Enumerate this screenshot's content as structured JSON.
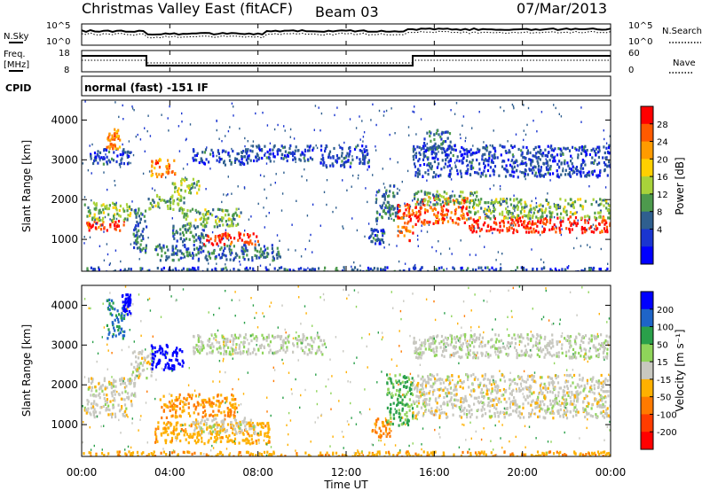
{
  "header": {
    "title": "Christmas Valley East (fitACF)",
    "beam": "Beam 03",
    "date": "07/Mar/2013"
  },
  "ops_panel": {
    "nsky_label": "N.Sky",
    "nsky_ticks": [
      "10^5",
      "10^0"
    ],
    "nsearch_label": "N.Search",
    "nsearch_ticks": [
      "10^5",
      "10^0"
    ],
    "freq_label_1": "Freq.",
    "freq_label_2": "[MHz]",
    "freq_ticks": [
      "18",
      "8"
    ],
    "nave_label": "Nave",
    "nave_ticks": [
      "60",
      "0"
    ],
    "cpid_label": "CPID",
    "cpid_value": "normal (fast) -151 IF"
  },
  "chart_data": [
    {
      "type": "heatmap",
      "name": "power",
      "ylabel": "Slant Range [km]",
      "ylim": [
        200,
        4500
      ],
      "yticks": [
        "1000",
        "2000",
        "3000",
        "4000"
      ],
      "colorbar": {
        "label": "Power [dB]",
        "ticks": [
          "28",
          "24",
          "20",
          "16",
          "12",
          "8",
          "4"
        ],
        "colors": [
          "#ff0000",
          "#ff5a00",
          "#ff9b00",
          "#ffd000",
          "#a8d23a",
          "#4d9a4d",
          "#2f5f8f",
          "#1a35d0",
          "#0000ff"
        ]
      },
      "blobs": [
        {
          "t0": 0.2,
          "t1": 1.9,
          "r0": 1250,
          "r1": 1500,
          "p": 28
        },
        {
          "t0": 0.1,
          "t1": 2.2,
          "r0": 1500,
          "r1": 1950,
          "p": 14
        },
        {
          "t0": 0.3,
          "t1": 2.2,
          "r0": 2900,
          "r1": 3300,
          "p": 5
        },
        {
          "t0": 1.1,
          "t1": 1.7,
          "r0": 3300,
          "r1": 3800,
          "p": 24
        },
        {
          "t0": 2.2,
          "t1": 2.9,
          "r0": 700,
          "r1": 1800,
          "p": 8
        },
        {
          "t0": 3.0,
          "t1": 4.7,
          "r0": 1750,
          "r1": 2150,
          "p": 12
        },
        {
          "t0": 3.1,
          "t1": 4.2,
          "r0": 2600,
          "r1": 3050,
          "p": 24
        },
        {
          "t0": 4.0,
          "t1": 5.3,
          "r0": 2150,
          "r1": 2550,
          "p": 14
        },
        {
          "t0": 3.3,
          "t1": 9.0,
          "r0": 500,
          "r1": 900,
          "p": 8
        },
        {
          "t0": 4.5,
          "t1": 7.2,
          "r0": 1350,
          "r1": 1800,
          "p": 13
        },
        {
          "t0": 5.5,
          "t1": 8.0,
          "r0": 900,
          "r1": 1200,
          "p": 29
        },
        {
          "t0": 4.0,
          "t1": 5.6,
          "r0": 950,
          "r1": 1400,
          "p": 9
        },
        {
          "t0": 5.0,
          "t1": 7.5,
          "r0": 2900,
          "r1": 3300,
          "p": 5
        },
        {
          "t0": 7.5,
          "t1": 10.5,
          "r0": 3000,
          "r1": 3400,
          "p": 5
        },
        {
          "t0": 10.8,
          "t1": 13.0,
          "r0": 2850,
          "r1": 3400,
          "p": 5
        },
        {
          "t0": 13.3,
          "t1": 14.3,
          "r0": 1500,
          "r1": 2400,
          "p": 8
        },
        {
          "t0": 13.0,
          "t1": 13.7,
          "r0": 900,
          "r1": 1300,
          "p": 6
        },
        {
          "t0": 14.3,
          "t1": 15.0,
          "r0": 1000,
          "r1": 2000,
          "p": 27
        },
        {
          "t0": 15.0,
          "t1": 17.5,
          "r0": 1400,
          "r1": 2100,
          "p": 27
        },
        {
          "t0": 15.0,
          "t1": 18.0,
          "r0": 1900,
          "r1": 2250,
          "p": 12
        },
        {
          "t0": 17.5,
          "t1": 24.0,
          "r0": 1200,
          "r1": 1600,
          "p": 29
        },
        {
          "t0": 17.5,
          "t1": 24.0,
          "r0": 1550,
          "r1": 2050,
          "p": 13
        },
        {
          "t0": 15.0,
          "t1": 24.0,
          "r0": 2600,
          "r1": 3400,
          "p": 5
        },
        {
          "t0": 15.5,
          "t1": 16.7,
          "r0": 3300,
          "r1": 3800,
          "p": 8
        },
        {
          "t0": 0.0,
          "t1": 24.0,
          "r0": 200,
          "r1": 330,
          "p": 6
        }
      ]
    },
    {
      "type": "heatmap",
      "name": "velocity",
      "ylabel": "Slant Range [km]",
      "xlabel": "Time UT",
      "xlim": [
        0,
        24
      ],
      "ylim": [
        200,
        4500
      ],
      "xticks": [
        "00:00",
        "04:00",
        "08:00",
        "12:00",
        "16:00",
        "20:00",
        "00:00"
      ],
      "yticks": [
        "1000",
        "2000",
        "3000",
        "4000"
      ],
      "colorbar": {
        "label": "Velocity [m s⁻¹]",
        "ticks": [
          "200",
          "100",
          "50",
          "15",
          "-15",
          "-50",
          "-100",
          "-200"
        ],
        "colors": [
          "#0000ff",
          "#1e64c8",
          "#2aa04a",
          "#8fd45a",
          "#c8c8c0",
          "#ffb000",
          "#ff7a00",
          "#ff3c00",
          "#ff0000"
        ]
      },
      "blobs": [
        {
          "t0": 0.2,
          "t1": 2.4,
          "r0": 1500,
          "r1": 2200,
          "v": 0
        },
        {
          "t0": 0.1,
          "t1": 2.0,
          "r0": 1200,
          "r1": 1500,
          "v": 0
        },
        {
          "t0": 1.1,
          "t1": 1.9,
          "r0": 3200,
          "r1": 4200,
          "v": 80
        },
        {
          "t0": 1.8,
          "t1": 2.2,
          "r0": 3800,
          "r1": 4300,
          "v": 200
        },
        {
          "t0": 2.2,
          "t1": 3.2,
          "r0": 2200,
          "r1": 2900,
          "v": 0
        },
        {
          "t0": 3.1,
          "t1": 4.6,
          "r0": 2400,
          "r1": 3050,
          "v": 200
        },
        {
          "t0": 3.5,
          "t1": 7.0,
          "r0": 1200,
          "r1": 1800,
          "v": -50
        },
        {
          "t0": 3.3,
          "t1": 8.5,
          "r0": 550,
          "r1": 1100,
          "v": -35
        },
        {
          "t0": 5.0,
          "t1": 8.0,
          "r0": 800,
          "r1": 1200,
          "v": 0
        },
        {
          "t0": 13.1,
          "t1": 14.0,
          "r0": 700,
          "r1": 1200,
          "v": -60
        },
        {
          "t0": 13.8,
          "t1": 15.0,
          "r0": 1000,
          "r1": 2300,
          "v": 40
        },
        {
          "t0": 15.0,
          "t1": 24.0,
          "r0": 1200,
          "r1": 2300,
          "v": 0
        },
        {
          "t0": 15.0,
          "t1": 24.0,
          "r0": 2700,
          "r1": 3300,
          "v": 5
        },
        {
          "t0": 5.0,
          "t1": 11.0,
          "r0": 2800,
          "r1": 3300,
          "v": 5
        },
        {
          "t0": 0.0,
          "t1": 24.0,
          "r0": 200,
          "r1": 350,
          "v": -40
        }
      ]
    }
  ]
}
